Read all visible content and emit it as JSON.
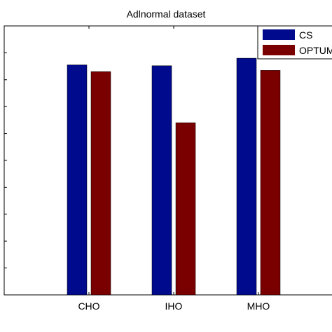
{
  "chart_data": {
    "type": "bar",
    "title": "Adlnormal dataset",
    "categories": [
      "CHO",
      "IHO",
      "MHO"
    ],
    "series": [
      {
        "name": "CS",
        "color": "#000a8c",
        "values": [
          0.855,
          0.852,
          0.88
        ]
      },
      {
        "name": "OPTUM",
        "color": "#7a0000",
        "values": [
          0.83,
          0.64,
          0.835
        ]
      }
    ],
    "ylim": [
      0,
      1
    ],
    "ytick_count": 11,
    "xlabel": "",
    "ylabel": "",
    "grid": false,
    "legend_position": "top-right"
  }
}
